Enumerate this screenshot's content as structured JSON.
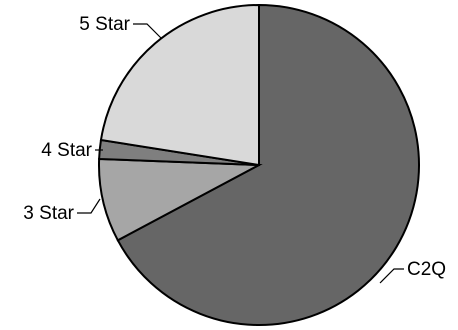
{
  "chart_data": {
    "type": "pie",
    "start_angle_deg": 0,
    "direction": "clockwise",
    "slices": [
      {
        "label": "C2Q",
        "value": 67.2,
        "color": "#666666"
      },
      {
        "label": "3 Star",
        "value": 8.4,
        "color": "#a6a6a6"
      },
      {
        "label": "4 Star",
        "value": 1.9,
        "color": "#7f7f7f"
      },
      {
        "label": "5 Star",
        "value": 22.5,
        "color": "#d9d9d9"
      }
    ]
  }
}
